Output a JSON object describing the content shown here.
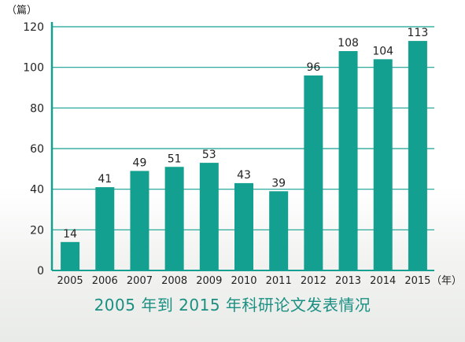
{
  "chart_data": {
    "type": "bar",
    "title": "2005 年到 2015 年科研论文发表情况",
    "y_unit": "（篇）",
    "x_unit": "（年）",
    "categories": [
      "2005",
      "2006",
      "2007",
      "2008",
      "2009",
      "2010",
      "2011",
      "2012",
      "2013",
      "2014",
      "2015"
    ],
    "values": [
      14,
      41,
      49,
      51,
      53,
      43,
      39,
      96,
      108,
      104,
      113
    ],
    "ylim": [
      0,
      120
    ],
    "yticks": [
      0,
      20,
      40,
      60,
      80,
      100,
      120
    ],
    "grid": true,
    "bar_color": "#14a090",
    "axis_color": "#14a090"
  }
}
